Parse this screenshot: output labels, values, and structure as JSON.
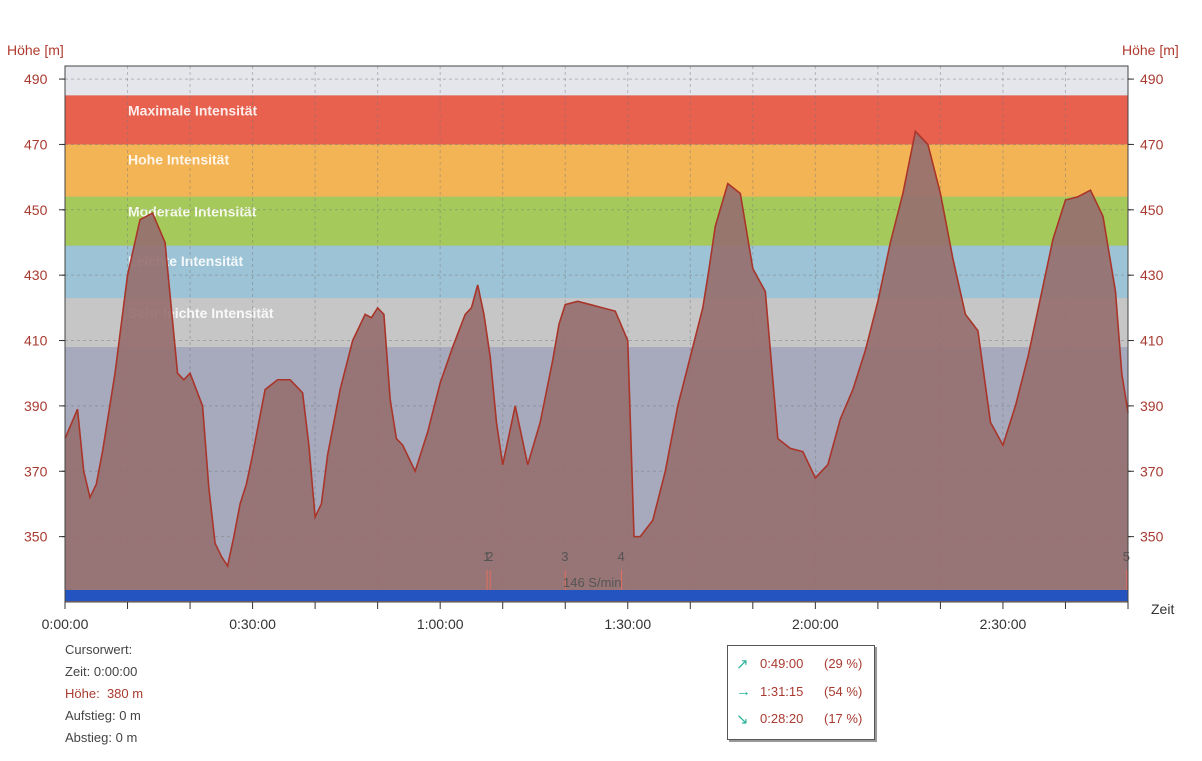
{
  "chart_data": {
    "type": "area",
    "y_axis_label_left": "Höhe [m]",
    "y_axis_label_right": "Höhe [m]",
    "x_axis_label": "Zeit",
    "ylim": [
      330,
      494
    ],
    "xlim_min": [
      0,
      170
    ],
    "y_ticks": [
      "350",
      "370",
      "390",
      "410",
      "430",
      "450",
      "470",
      "490"
    ],
    "x_ticks": [
      "0:00:00",
      "0:30:00",
      "1:00:00",
      "1:30:00",
      "2:00:00",
      "2:30:00"
    ],
    "zones": [
      {
        "label": "Maximale Intensität",
        "from": 470,
        "to": 485,
        "color": "#e8604e"
      },
      {
        "label": "Hohe Intensität",
        "from": 454,
        "to": 470,
        "color": "#f3b455"
      },
      {
        "label": "Moderate Intensität",
        "from": 439,
        "to": 454,
        "color": "#a6c95b"
      },
      {
        "label": "Leichte Intensität",
        "from": 423,
        "to": 439,
        "color": "#9dc3d6"
      },
      {
        "label": "Sehr leichte Intensität",
        "from": 408,
        "to": 423,
        "color": "#c6c6c6"
      }
    ],
    "series": [
      {
        "fill_color": "#96706f",
        "line_color": "#a9352a",
        "x": [
          0,
          2,
          3,
          4,
          5,
          6,
          8,
          10,
          12,
          14,
          16,
          18,
          19,
          20,
          22,
          23,
          24,
          25,
          26,
          27,
          28,
          29,
          30,
          32,
          34,
          36,
          38,
          39,
          40,
          41,
          42,
          44,
          46,
          48,
          49,
          50,
          51,
          52,
          53,
          54,
          56,
          58,
          60,
          62,
          64,
          65,
          66,
          67,
          68,
          69,
          70,
          72,
          74,
          76,
          78,
          79,
          80,
          82,
          84,
          86,
          88,
          90,
          91,
          92,
          94,
          96,
          98,
          100,
          102,
          103,
          104,
          106,
          108,
          110,
          112,
          114,
          116,
          118,
          120,
          122,
          124,
          126,
          128,
          130,
          132,
          134,
          136,
          138,
          140,
          142,
          144,
          146,
          148,
          150,
          152,
          154,
          156,
          158,
          160,
          162,
          164,
          166,
          168,
          169,
          170
        ],
        "y": [
          380,
          389,
          370,
          362,
          366,
          376,
          400,
          430,
          447,
          449,
          440,
          400,
          398,
          400,
          390,
          365,
          348,
          344,
          341,
          350,
          360,
          366,
          375,
          395,
          398,
          398,
          394,
          378,
          356,
          360,
          375,
          395,
          410,
          418,
          417,
          420,
          418,
          392,
          380,
          378,
          370,
          382,
          397,
          408,
          418,
          420,
          427,
          418,
          405,
          385,
          372,
          390,
          372,
          385,
          404,
          415,
          421,
          422,
          421,
          420,
          419,
          410,
          350,
          350,
          355,
          370,
          390,
          405,
          420,
          432,
          445,
          458,
          455,
          432,
          425,
          380,
          377,
          376,
          368,
          372,
          386,
          395,
          407,
          422,
          440,
          455,
          474,
          470,
          455,
          435,
          418,
          413,
          385,
          378,
          390,
          405,
          423,
          441,
          453,
          454,
          456,
          448,
          425,
          400,
          388
        ]
      }
    ],
    "lap_markers": [
      {
        "label": "1",
        "x": 67.5
      },
      {
        "label": "2",
        "x": 68.0
      },
      {
        "label": "3",
        "x": 80.0
      },
      {
        "label": "4",
        "x": 89.0
      },
      {
        "label": "5",
        "x": 169.8
      }
    ],
    "cadence_label": "146 S/min"
  },
  "cursor": {
    "title": "Cursorwert:",
    "time_label": "Zeit:",
    "time_value": "0:00:00",
    "height_label": "Höhe:",
    "height_value": "380 m",
    "ascent_label": "Aufstieg:",
    "ascent_value": "0 m",
    "descent_label": "Abstieg:",
    "descent_value": "0 m"
  },
  "stats": {
    "up": {
      "arrow": "↗",
      "time": "0:49:00",
      "pct": "(29 %)"
    },
    "flat": {
      "arrow": "→",
      "time": "1:31:15",
      "pct": "(54 %)"
    },
    "down": {
      "arrow": "↘",
      "time": "0:28:20",
      "pct": "(17 %)"
    }
  }
}
